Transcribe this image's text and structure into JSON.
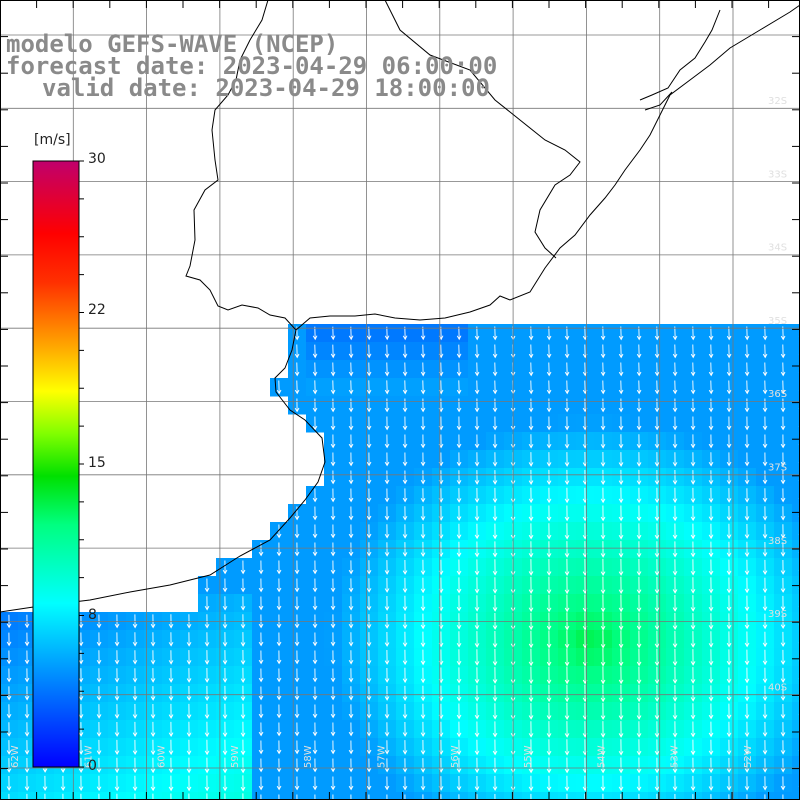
{
  "title": {
    "line1": "modelo GEFS-WAVE (NCEP)",
    "line2": "forecast date: 2023-04-29 06:00:00",
    "line3": "valid date: 2023-04-29 18:00:00"
  },
  "colorbar": {
    "unit": "[m/s]",
    "ticks": [
      "30",
      "22",
      "15",
      "8",
      "0"
    ],
    "colors": [
      "#0000ff",
      "#00b4ff",
      "#00ffff",
      "#00ff80",
      "#00e000",
      "#80ff00",
      "#ffff00",
      "#ffa000",
      "#ff4000",
      "#ff0000",
      "#c0006c"
    ]
  },
  "grid": {
    "lat_labels": [
      "32S",
      "33S",
      "34S",
      "35S",
      "36S",
      "37S",
      "38S",
      "39S",
      "40S"
    ],
    "lon_labels": [
      "62W",
      "61W",
      "60W",
      "59W",
      "58W",
      "57W",
      "56W",
      "55W",
      "54W",
      "53W",
      "52W"
    ]
  }
}
